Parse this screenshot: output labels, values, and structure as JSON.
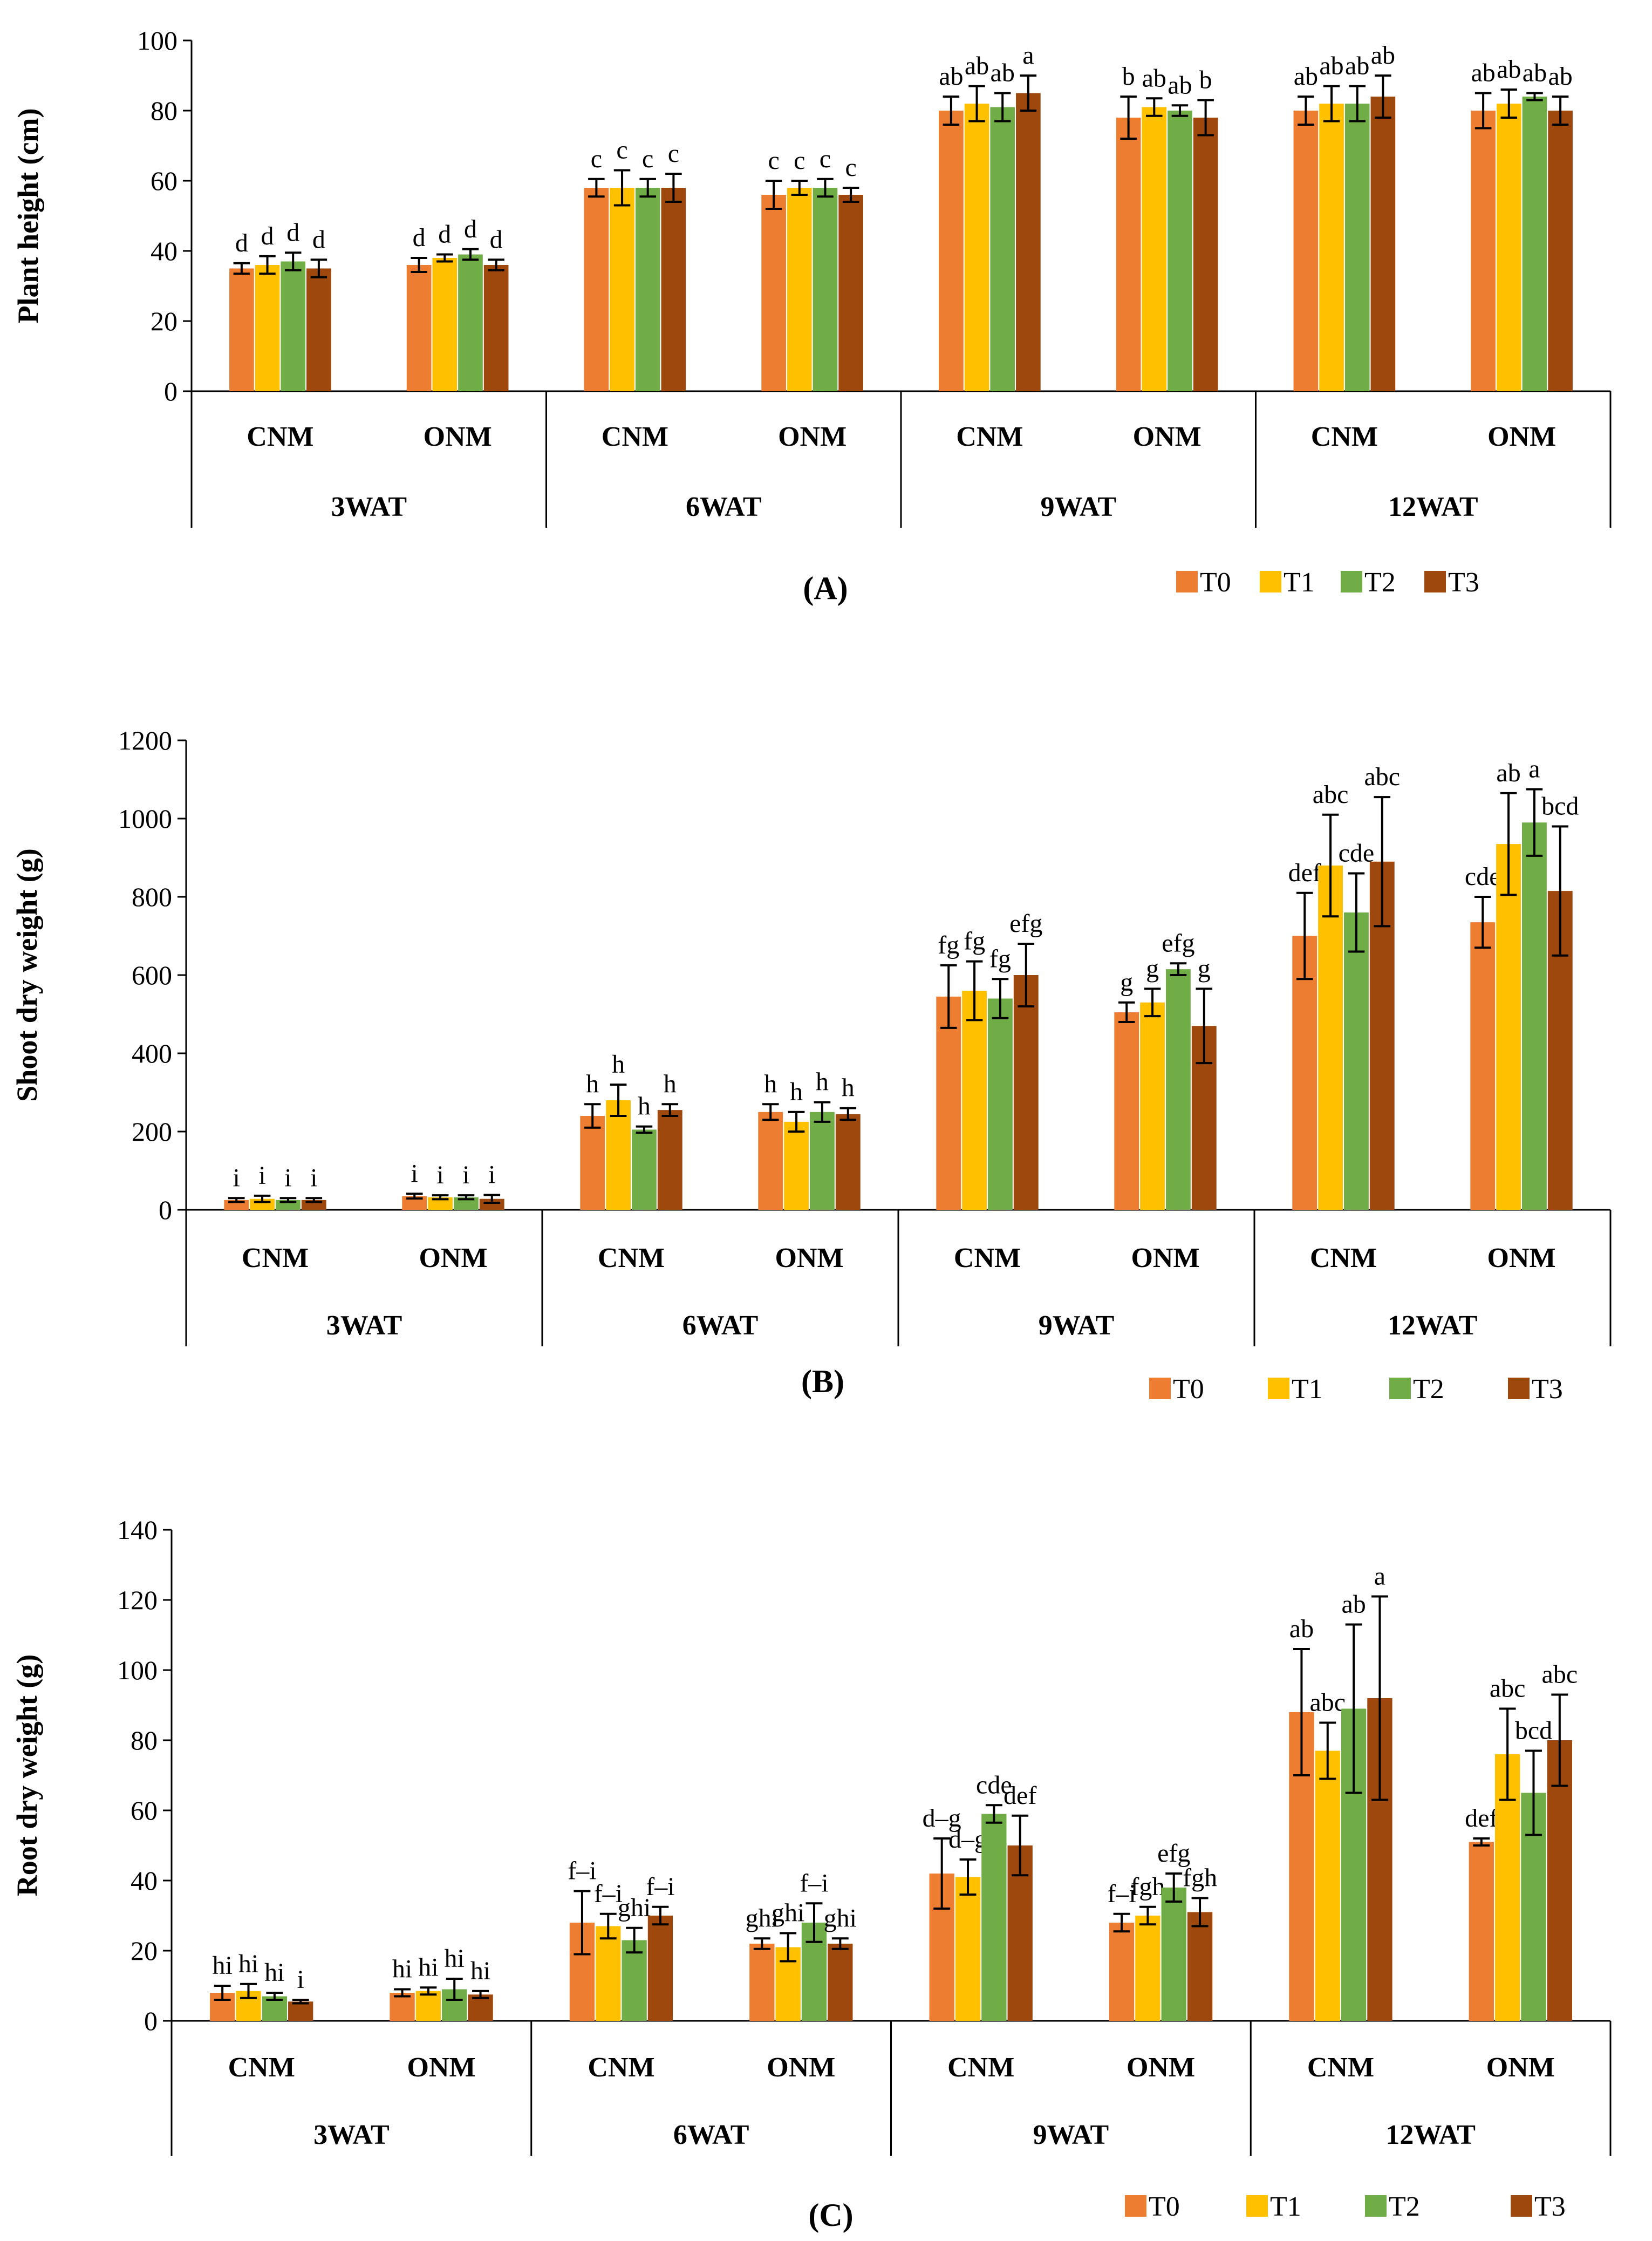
{
  "chart_data": [
    {
      "type": "bar",
      "panel_label": "(A)",
      "ylabel": "Plant height (cm)",
      "ylim": [
        0,
        100
      ],
      "yticks": [
        0,
        20,
        40,
        60,
        80,
        100
      ],
      "groups": [
        "3WAT",
        "6WAT",
        "9WAT",
        "12WAT"
      ],
      "subgroups": [
        "CNM",
        "ONM"
      ],
      "legend": [
        "T0",
        "T1",
        "T2",
        "T3"
      ],
      "series": [
        {
          "name": "T0",
          "values": [
            35,
            36,
            58,
            56,
            80,
            78,
            80,
            80
          ],
          "errors": [
            1.5,
            2,
            2.5,
            4,
            4,
            6,
            4,
            5
          ],
          "labels": [
            "d",
            "d",
            "c",
            "c",
            "ab",
            "b",
            "ab",
            "ab"
          ]
        },
        {
          "name": "T1",
          "values": [
            36,
            38,
            58,
            58,
            82,
            81,
            82,
            82
          ],
          "errors": [
            2.5,
            1,
            5,
            2,
            5,
            2.5,
            5,
            4
          ],
          "labels": [
            "d",
            "d",
            "c",
            "c",
            "ab",
            "ab",
            "ab",
            "ab"
          ]
        },
        {
          "name": "T2",
          "values": [
            37,
            39,
            58,
            58,
            81,
            80,
            82,
            84
          ],
          "errors": [
            2.5,
            1.5,
            2.5,
            2.5,
            4,
            1.5,
            5,
            1
          ],
          "labels": [
            "d",
            "d",
            "c",
            "c",
            "ab",
            "ab",
            "ab",
            "ab"
          ]
        },
        {
          "name": "T3",
          "values": [
            35,
            36,
            58,
            56,
            85,
            78,
            84,
            80
          ],
          "errors": [
            2.5,
            1.5,
            4,
            2,
            5,
            5,
            6,
            4
          ],
          "labels": [
            "d",
            "d",
            "c",
            "c",
            "a",
            "b",
            "ab",
            "ab"
          ]
        }
      ]
    },
    {
      "type": "bar",
      "panel_label": "(B)",
      "ylabel": "Shoot dry weight (g)",
      "ylim": [
        0,
        1200
      ],
      "yticks": [
        0,
        200,
        400,
        600,
        800,
        1000,
        1200
      ],
      "groups": [
        "3WAT",
        "6WAT",
        "9WAT",
        "12WAT"
      ],
      "subgroups": [
        "CNM",
        "ONM"
      ],
      "legend": [
        "T0",
        "T1",
        "T2",
        "T3"
      ],
      "series": [
        {
          "name": "T0",
          "values": [
            25,
            35,
            240,
            250,
            545,
            505,
            700,
            735
          ],
          "errors": [
            5,
            6,
            30,
            20,
            80,
            25,
            110,
            65
          ],
          "labels": [
            "i",
            "i",
            "h",
            "h",
            "fg",
            "g",
            "def",
            "cde"
          ]
        },
        {
          "name": "T1",
          "values": [
            28,
            32,
            280,
            225,
            560,
            530,
            880,
            935
          ],
          "errors": [
            8,
            5,
            40,
            25,
            75,
            35,
            130,
            130
          ],
          "labels": [
            "i",
            "i",
            "h",
            "h",
            "fg",
            "g",
            "abc",
            "ab"
          ]
        },
        {
          "name": "T2",
          "values": [
            25,
            32,
            205,
            250,
            540,
            615,
            760,
            990
          ],
          "errors": [
            5,
            5,
            8,
            25,
            50,
            15,
            100,
            85
          ],
          "labels": [
            "i",
            "i",
            "h",
            "h",
            "fg",
            "efg",
            "cde",
            "a"
          ]
        },
        {
          "name": "T3",
          "values": [
            25,
            28,
            255,
            245,
            600,
            470,
            890,
            815
          ],
          "errors": [
            5,
            10,
            15,
            15,
            80,
            95,
            165,
            165
          ],
          "labels": [
            "i",
            "i",
            "h",
            "h",
            "efg",
            "g",
            "abc",
            "bcd"
          ]
        }
      ]
    },
    {
      "type": "bar",
      "panel_label": "(C)",
      "ylabel": "Root dry weight (g)",
      "ylim": [
        0,
        140
      ],
      "yticks": [
        0,
        20,
        40,
        60,
        80,
        100,
        120,
        140
      ],
      "groups": [
        "3WAT",
        "6WAT",
        "9WAT",
        "12WAT"
      ],
      "subgroups": [
        "CNM",
        "ONM"
      ],
      "legend": [
        "T0",
        "T1",
        "T2",
        "T3"
      ],
      "series": [
        {
          "name": "T0",
          "values": [
            8,
            8,
            28,
            22,
            42,
            28,
            88,
            51
          ],
          "errors": [
            2,
            1,
            9,
            1.5,
            10,
            2.5,
            18,
            1
          ],
          "labels": [
            "hi",
            "hi",
            "f–i",
            "ghi",
            "d–g",
            "f–i",
            "ab",
            "def"
          ]
        },
        {
          "name": "T1",
          "values": [
            8.5,
            8.5,
            27,
            21,
            41,
            30,
            77,
            76
          ],
          "errors": [
            2,
            1,
            3.5,
            4,
            5,
            2.5,
            8,
            13
          ],
          "labels": [
            "hi",
            "hi",
            "f–i",
            "ghi",
            "d–g",
            "fgh",
            "abc",
            "abc"
          ]
        },
        {
          "name": "T2",
          "values": [
            7,
            9,
            23,
            28,
            59,
            38,
            89,
            65
          ],
          "errors": [
            1,
            3,
            3.5,
            5.5,
            2.5,
            4,
            24,
            12
          ],
          "labels": [
            "hi",
            "hi",
            "ghi",
            "f–i",
            "cde",
            "efg",
            "ab",
            "bcd"
          ]
        },
        {
          "name": "T3",
          "values": [
            5.5,
            7.5,
            30,
            22,
            50,
            31,
            92,
            80
          ],
          "errors": [
            0.5,
            1,
            2.5,
            1.5,
            8.5,
            4,
            29,
            13
          ],
          "labels": [
            "i",
            "hi",
            "f–i",
            "ghi",
            "def",
            "fgh",
            "a",
            "abc"
          ]
        }
      ]
    }
  ],
  "colors": {
    "T0": "#ED7D31",
    "T1": "#FFC000",
    "T2": "#70AD47",
    "T3": "#9E480E",
    "axis": "#000000"
  }
}
